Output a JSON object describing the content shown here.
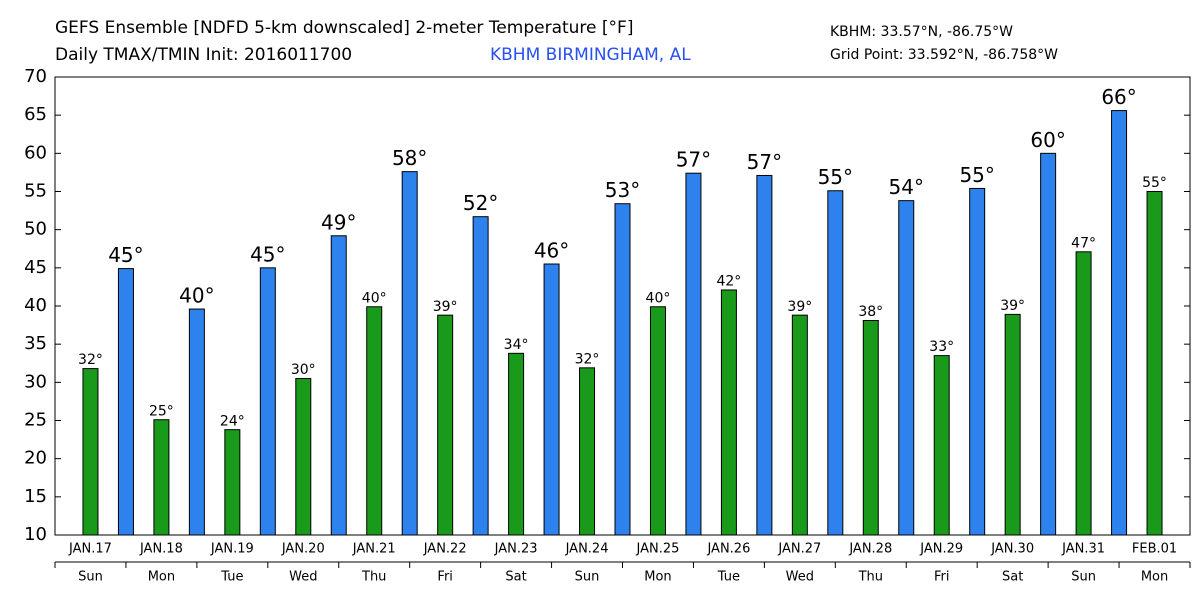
{
  "chart_data": {
    "type": "bar",
    "title": "GEFS Ensemble [NDFD 5-km downscaled] 2-meter Temperature [°F]",
    "subtitle": "Daily TMAX/TMIN Init: 2016011700",
    "station": "KBHM BIRMINGHAM, AL",
    "location": "KBHM: 33.57°N, -86.75°W",
    "grid_point": "Grid Point: 33.592°N, -86.758°W",
    "categories": [
      "JAN.17",
      "JAN.18",
      "JAN.19",
      "JAN.20",
      "JAN.21",
      "JAN.22",
      "JAN.23",
      "JAN.24",
      "JAN.25",
      "JAN.26",
      "JAN.27",
      "JAN.28",
      "JAN.29",
      "JAN.30",
      "JAN.31",
      "FEB.01"
    ],
    "weekdays": [
      "Sun",
      "Mon",
      "Tue",
      "Wed",
      "Thu",
      "Fri",
      "Sat",
      "Sun",
      "Mon",
      "Tue",
      "Wed",
      "Thu",
      "Fri",
      "Sat",
      "Sun",
      "Mon"
    ],
    "series": [
      {
        "color": "#1a9a1a",
        "values": [
          31.8,
          25.1,
          23.8,
          30.5,
          39.9,
          38.8,
          33.8,
          31.9,
          39.9,
          42.1,
          38.8,
          38.1,
          33.5,
          38.9,
          47.1,
          55.0
        ],
        "value_labels": [
          "32°",
          "25°",
          "24°",
          "30°",
          "40°",
          "39°",
          "34°",
          "32°",
          "40°",
          "42°",
          "39°",
          "38°",
          "33°",
          "39°",
          "47°",
          "55°"
        ]
      },
      {
        "color": "#2e82ee",
        "values": [
          null,
          44.9,
          39.6,
          45.0,
          49.2,
          57.6,
          51.7,
          45.5,
          53.4,
          57.4,
          57.1,
          55.1,
          53.8,
          55.4,
          60.0,
          65.6
        ],
        "value_labels": [
          null,
          "45°",
          "40°",
          "45°",
          "49°",
          "58°",
          "52°",
          "46°",
          "53°",
          "57°",
          "57°",
          "55°",
          "54°",
          "55°",
          "60°",
          "66°"
        ]
      }
    ],
    "ylim": [
      10,
      70
    ],
    "yticks": [
      10,
      15,
      20,
      25,
      30,
      35,
      40,
      45,
      50,
      55,
      60,
      65,
      70
    ]
  }
}
